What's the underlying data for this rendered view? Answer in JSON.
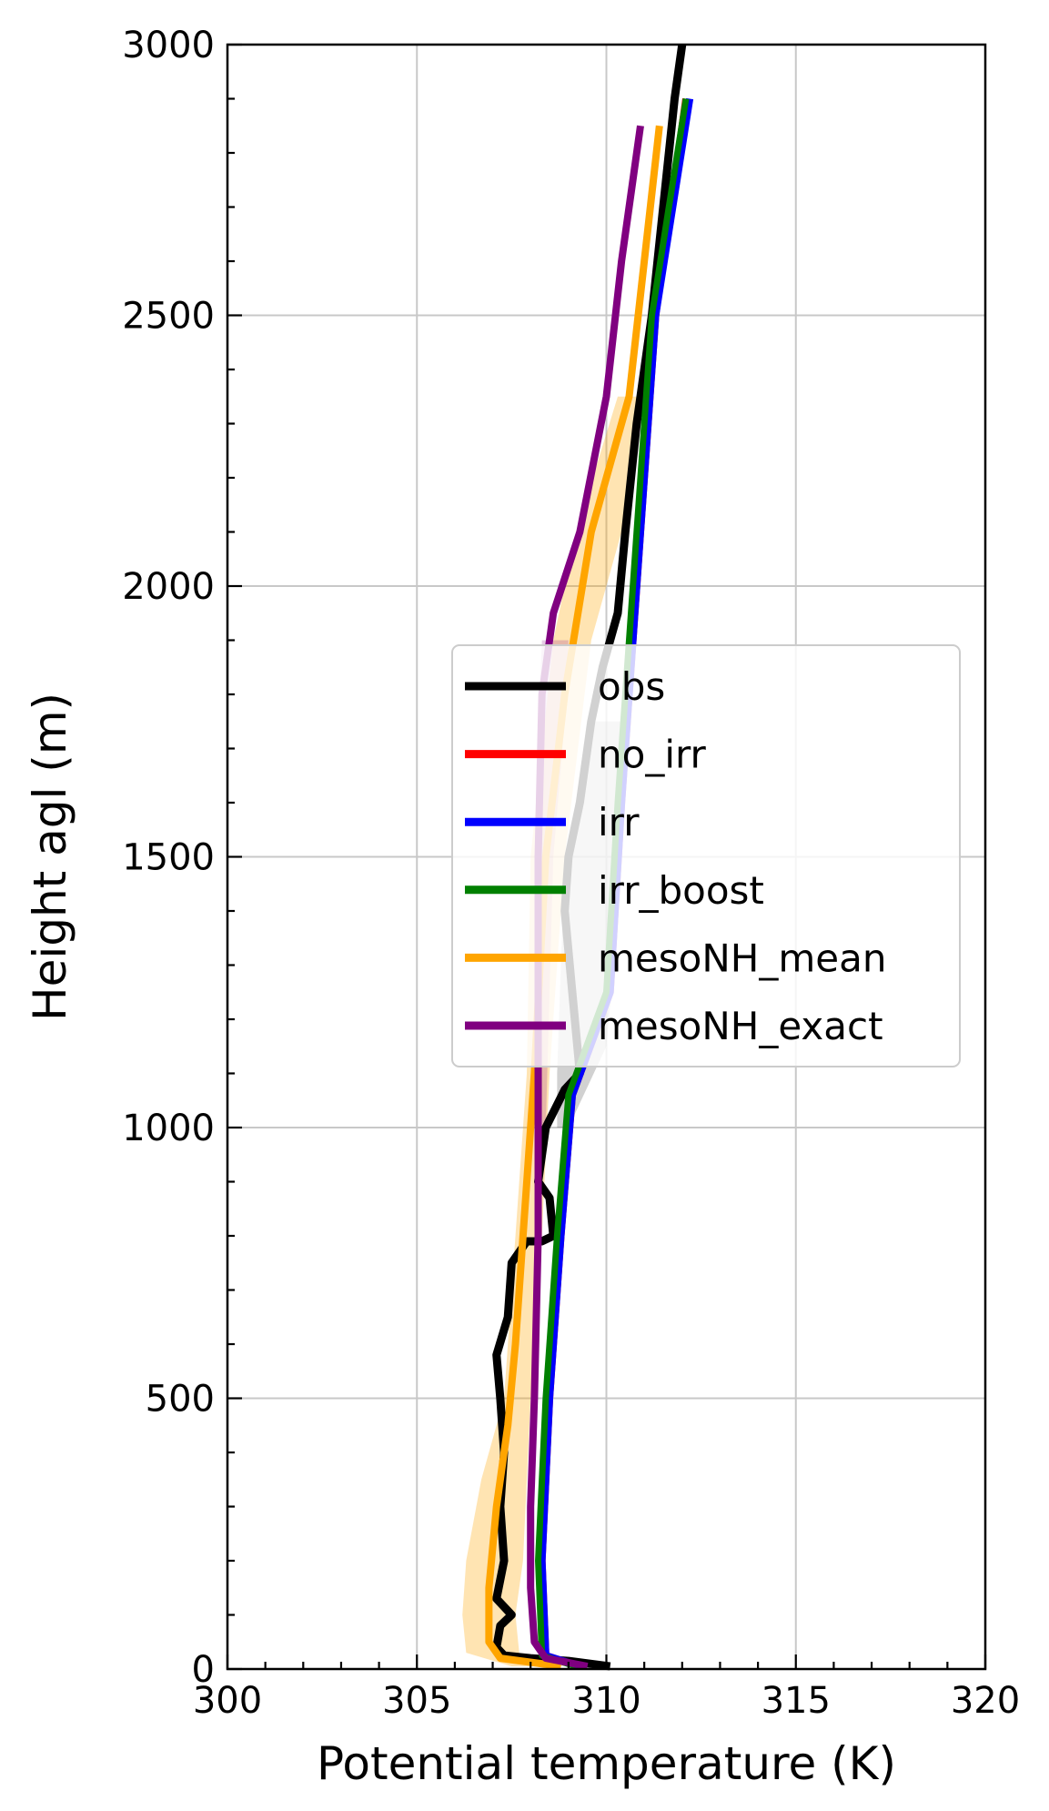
{
  "chart_data": {
    "type": "line",
    "xlabel": "Potential temperature (K)",
    "ylabel": "Height agl (m)",
    "xlim": [
      300,
      320
    ],
    "ylim": [
      0,
      3000
    ],
    "xticks": [
      "300",
      "305",
      "310",
      "315",
      "320"
    ],
    "yticks": [
      "0",
      "500",
      "1000",
      "1500",
      "2000",
      "2500",
      "3000"
    ],
    "grid": true,
    "legend_position": "center-right",
    "series": [
      {
        "name": "obs",
        "color": "#000000",
        "points": [
          [
            310.1,
            5
          ],
          [
            309.0,
            15
          ],
          [
            308.0,
            20
          ],
          [
            307.3,
            25
          ],
          [
            307.1,
            40
          ],
          [
            307.2,
            80
          ],
          [
            307.5,
            100
          ],
          [
            307.1,
            130
          ],
          [
            307.3,
            200
          ],
          [
            307.2,
            300
          ],
          [
            307.3,
            400
          ],
          [
            307.2,
            500
          ],
          [
            307.1,
            580
          ],
          [
            307.4,
            650
          ],
          [
            307.5,
            750
          ],
          [
            307.9,
            790
          ],
          [
            308.3,
            790
          ],
          [
            308.6,
            800
          ],
          [
            308.5,
            870
          ],
          [
            308.2,
            900
          ],
          [
            308.4,
            1000
          ],
          [
            308.9,
            1070
          ],
          [
            309.3,
            1100
          ],
          [
            309.1,
            1250
          ],
          [
            308.9,
            1400
          ],
          [
            309.0,
            1500
          ],
          [
            309.3,
            1600
          ],
          [
            309.6,
            1750
          ],
          [
            309.9,
            1850
          ],
          [
            310.3,
            1950
          ],
          [
            310.5,
            2100
          ],
          [
            310.8,
            2300
          ],
          [
            311.2,
            2500
          ],
          [
            311.5,
            2700
          ],
          [
            311.8,
            2900
          ],
          [
            312.0,
            3000
          ]
        ]
      },
      {
        "name": "no_irr",
        "color": "#ff0000",
        "points": [
          [
            309.3,
            5
          ],
          [
            308.4,
            25
          ],
          [
            308.3,
            200
          ],
          [
            308.5,
            500
          ],
          [
            308.8,
            800
          ],
          [
            309.1,
            1060
          ],
          [
            310.1,
            1250
          ],
          [
            310.4,
            1600
          ],
          [
            310.8,
            2000
          ],
          [
            311.3,
            2500
          ],
          [
            312.1,
            2900
          ]
        ]
      },
      {
        "name": "irr",
        "color": "#0000ff",
        "points": [
          [
            309.3,
            5
          ],
          [
            308.4,
            25
          ],
          [
            308.3,
            200
          ],
          [
            308.5,
            500
          ],
          [
            308.8,
            800
          ],
          [
            309.1,
            1060
          ],
          [
            310.1,
            1250
          ],
          [
            310.4,
            1600
          ],
          [
            310.8,
            2000
          ],
          [
            311.3,
            2500
          ],
          [
            312.2,
            2900
          ]
        ]
      },
      {
        "name": "irr_boost",
        "color": "#008000",
        "points": [
          [
            309.2,
            5
          ],
          [
            308.3,
            25
          ],
          [
            308.2,
            200
          ],
          [
            308.4,
            500
          ],
          [
            308.7,
            800
          ],
          [
            309.0,
            1060
          ],
          [
            310.0,
            1250
          ],
          [
            310.3,
            1600
          ],
          [
            310.7,
            2000
          ],
          [
            311.2,
            2500
          ],
          [
            312.1,
            2900
          ]
        ]
      },
      {
        "name": "mesoNH_mean",
        "color": "#ffa500",
        "points": [
          [
            308.8,
            5
          ],
          [
            307.2,
            20
          ],
          [
            306.9,
            50
          ],
          [
            306.9,
            150
          ],
          [
            307.1,
            300
          ],
          [
            307.4,
            450
          ],
          [
            307.6,
            600
          ],
          [
            307.8,
            800
          ],
          [
            308.1,
            1100
          ],
          [
            308.4,
            1500
          ],
          [
            308.9,
            1800
          ],
          [
            309.6,
            2100
          ],
          [
            310.6,
            2350
          ],
          [
            311.0,
            2600
          ],
          [
            311.4,
            2850
          ]
        ]
      },
      {
        "name": "mesoNH_exact",
        "color": "#800080",
        "points": [
          [
            309.5,
            5
          ],
          [
            308.4,
            20
          ],
          [
            308.1,
            50
          ],
          [
            308.0,
            150
          ],
          [
            308.0,
            300
          ],
          [
            308.1,
            500
          ],
          [
            308.2,
            800
          ],
          [
            308.2,
            1100
          ],
          [
            308.2,
            1500
          ],
          [
            308.3,
            1800
          ],
          [
            308.6,
            1950
          ],
          [
            309.3,
            2100
          ],
          [
            310.0,
            2350
          ],
          [
            310.4,
            2600
          ],
          [
            310.9,
            2850
          ]
        ]
      }
    ],
    "shading": [
      {
        "series": "mesoNH_mean",
        "color": "#ffa500",
        "opacity": 0.3,
        "lower": [
          [
            307.5,
            5
          ],
          [
            306.3,
            30
          ],
          [
            306.2,
            100
          ],
          [
            306.3,
            200
          ],
          [
            306.7,
            350
          ],
          [
            307.3,
            500
          ],
          [
            307.6,
            800
          ],
          [
            307.9,
            1100
          ],
          [
            308.0,
            1500
          ],
          [
            308.6,
            1900
          ],
          [
            309.2,
            2100
          ],
          [
            310.3,
            2350
          ]
        ],
        "upper": [
          [
            308.9,
            5
          ],
          [
            307.7,
            30
          ],
          [
            307.6,
            100
          ],
          [
            307.8,
            200
          ],
          [
            307.9,
            350
          ],
          [
            308.0,
            500
          ],
          [
            308.3,
            800
          ],
          [
            308.5,
            1100
          ],
          [
            308.9,
            1500
          ],
          [
            309.6,
            1900
          ],
          [
            310.4,
            2100
          ],
          [
            310.9,
            2350
          ]
        ]
      },
      {
        "series": "mesoNH_exact",
        "color": "#800080",
        "opacity": 0.2,
        "lower": [
          [
            308.3,
            1000
          ],
          [
            308.2,
            1500
          ],
          [
            308.2,
            1750
          ],
          [
            308.3,
            1900
          ]
        ],
        "upper": [
          [
            308.4,
            1000
          ],
          [
            308.6,
            1500
          ],
          [
            308.9,
            1750
          ],
          [
            309.0,
            1900
          ]
        ]
      },
      {
        "series": "obs",
        "color": "#000000",
        "opacity": 0.18,
        "lower": [
          [
            308.7,
            1000
          ],
          [
            308.7,
            1100
          ],
          [
            308.8,
            1300
          ],
          [
            308.9,
            1500
          ],
          [
            309.2,
            1600
          ],
          [
            309.5,
            1750
          ]
        ],
        "upper": [
          [
            309.0,
            1000
          ],
          [
            310.0,
            1150
          ],
          [
            310.2,
            1300
          ],
          [
            310.3,
            1500
          ],
          [
            310.4,
            1600
          ],
          [
            310.5,
            1750
          ]
        ]
      }
    ],
    "annotations": []
  }
}
